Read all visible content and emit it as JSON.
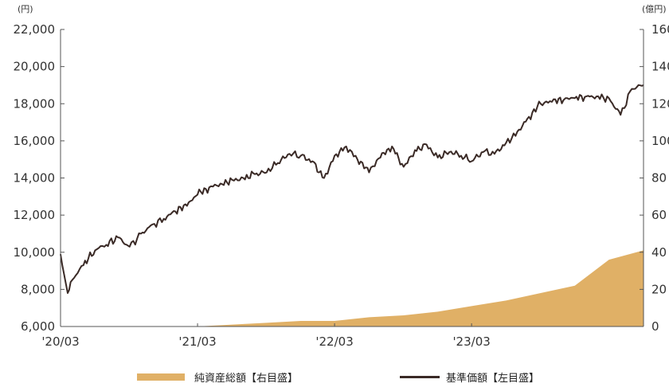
{
  "colors": {
    "area": "#E0B066",
    "line": "#3A2A26",
    "axis": "#555555"
  },
  "chart_data": {
    "type": "line",
    "left_unit": "(円)",
    "right_unit": "(億円)",
    "x_range": [
      "2020-03",
      "2024-06"
    ],
    "x_ticks": [
      "'20/03",
      "'21/03",
      "'22/03",
      "'23/03"
    ],
    "y_left": {
      "range": [
        6000,
        22000
      ],
      "ticks": [
        "6,000",
        "8,000",
        "10,000",
        "12,000",
        "14,000",
        "16,000",
        "18,000",
        "20,000",
        "22,000"
      ]
    },
    "y_right": {
      "range": [
        0,
        160
      ],
      "ticks": [
        "0",
        "20",
        "40",
        "60",
        "80",
        "100",
        "120",
        "140",
        "160"
      ]
    },
    "series": [
      {
        "name": "純資産総額【右目盛】",
        "axis": "right",
        "type": "area",
        "x": [
          "2020-03",
          "2020-06",
          "2020-09",
          "2020-12",
          "2021-03",
          "2021-06",
          "2021-09",
          "2021-12",
          "2022-03",
          "2022-06",
          "2022-09",
          "2022-12",
          "2023-03",
          "2023-06",
          "2023-09",
          "2023-12",
          "2024-03",
          "2024-06"
        ],
        "values": [
          0,
          0,
          0,
          0,
          0,
          1,
          2,
          3,
          3,
          5,
          6,
          8,
          11,
          14,
          18,
          22,
          36,
          41
        ]
      },
      {
        "name": "基準価額【左目盛】",
        "axis": "left",
        "type": "line",
        "x": [
          "2020-03",
          "2020-03-20",
          "2020-04",
          "2020-05",
          "2020-06",
          "2020-07",
          "2020-08",
          "2020-09",
          "2020-10",
          "2020-11",
          "2020-12",
          "2021-01",
          "2021-02",
          "2021-03",
          "2021-04",
          "2021-05",
          "2021-06",
          "2021-07",
          "2021-08",
          "2021-09",
          "2021-10",
          "2021-11",
          "2021-12",
          "2022-01",
          "2022-02",
          "2022-03",
          "2022-04",
          "2022-05",
          "2022-06",
          "2022-07",
          "2022-08",
          "2022-09",
          "2022-10",
          "2022-11",
          "2022-12",
          "2023-01",
          "2023-02",
          "2023-03",
          "2023-04",
          "2023-05",
          "2023-06",
          "2023-07",
          "2023-08",
          "2023-09",
          "2023-10",
          "2023-11",
          "2023-12",
          "2024-01",
          "2024-02",
          "2024-03",
          "2024-04",
          "2024-05",
          "2024-06"
        ],
        "values": [
          9900,
          7800,
          8500,
          9300,
          10100,
          10400,
          10800,
          10300,
          11000,
          11500,
          11800,
          12200,
          12500,
          13100,
          13500,
          13700,
          13900,
          14000,
          14200,
          14300,
          14800,
          15300,
          15200,
          14900,
          14000,
          15200,
          15700,
          15000,
          14300,
          15100,
          15700,
          14600,
          15500,
          15800,
          15100,
          15400,
          15200,
          14900,
          15400,
          15300,
          15900,
          16500,
          17300,
          18000,
          18100,
          18200,
          18300,
          18400,
          18400,
          18300,
          17400,
          18800,
          19000
        ]
      }
    ]
  }
}
